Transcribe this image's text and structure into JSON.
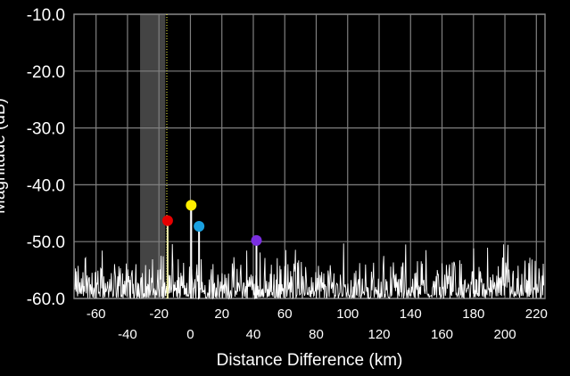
{
  "chart_data": {
    "type": "line",
    "title": "",
    "xlabel": "Distance Difference (km)",
    "ylabel": "Magnitude (dB)",
    "xlim": [
      -74,
      225.5
    ],
    "ylim": [
      -60,
      -10
    ],
    "grid": true,
    "y_ticks": [
      {
        "value": -10,
        "label": "-10.0"
      },
      {
        "value": -20,
        "label": "-20.0"
      },
      {
        "value": -30,
        "label": "-30.0"
      },
      {
        "value": -40,
        "label": "-40.0"
      },
      {
        "value": -50,
        "label": "-50.0"
      },
      {
        "value": -60,
        "label": "-60.0"
      }
    ],
    "x_ticks_upper": [
      {
        "value": -60,
        "label": "-60"
      },
      {
        "value": -20,
        "label": "-20"
      },
      {
        "value": 20,
        "label": "20"
      },
      {
        "value": 60,
        "label": "60"
      },
      {
        "value": 100,
        "label": "100"
      },
      {
        "value": 140,
        "label": "140"
      },
      {
        "value": 180,
        "label": "180"
      },
      {
        "value": 220,
        "label": "220"
      }
    ],
    "x_ticks_lower": [
      {
        "value": -40,
        "label": "-40"
      },
      {
        "value": 0,
        "label": "0"
      },
      {
        "value": 40,
        "label": "40"
      },
      {
        "value": 80,
        "label": "80"
      },
      {
        "value": 120,
        "label": "120"
      },
      {
        "value": 160,
        "label": "160"
      },
      {
        "value": 200,
        "label": "200"
      }
    ],
    "shaded_region": {
      "x": [
        -32,
        -16
      ],
      "color": "#444444"
    },
    "cursor_line": {
      "x": -15,
      "color": "#ffff44"
    },
    "noise_floor": {
      "min": -60,
      "typical_max": -54,
      "peak_max": -50
    },
    "markers": [
      {
        "name": "red",
        "x": -14.5,
        "y": -46.3,
        "color": "#e60000",
        "stem": "#f0f0b0"
      },
      {
        "name": "yellow",
        "x": 0.5,
        "y": -43.6,
        "color": "#ffee00",
        "stem": "#ffffff"
      },
      {
        "name": "blue",
        "x": 5.5,
        "y": -47.3,
        "color": "#1aa0e0",
        "stem": "#ffffff"
      },
      {
        "name": "purple",
        "x": 42,
        "y": -49.8,
        "color": "#7a2ee0",
        "stem": "#ffffff"
      }
    ],
    "colors": {
      "background": "#000000",
      "grid": "#808080",
      "trace": "#ffffff"
    }
  }
}
